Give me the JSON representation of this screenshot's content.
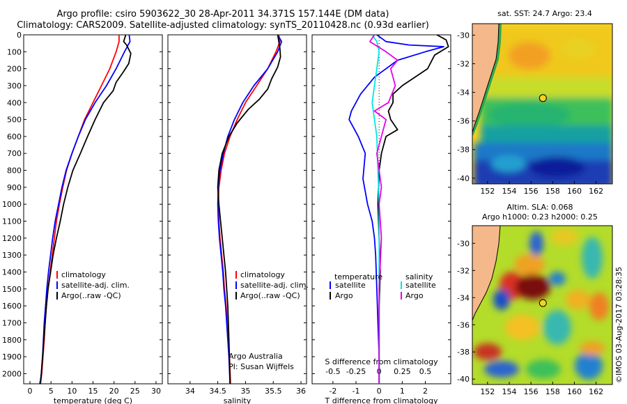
{
  "header": {
    "title_line1": "Argo profile: csiro 5903622_30 28-Apr-2011 34.371S 157.144E (DM data)",
    "title_line2": "Climatology: CARS2009. Satellite-adjusted climatology: synTS_20110428.nc (0.93d earlier)"
  },
  "credit": "©IMOS 03-Aug-2017 03:28:35",
  "colors": {
    "climatology": "#ff0000",
    "satellite": "#0000ff",
    "argo": "#000000",
    "sat_salinity": "#00e6e6",
    "argo_salinity": "#e600e6",
    "land": "#f5b88a",
    "coast_shelf": "#2fa84f"
  },
  "depth_ticks": [
    0,
    100,
    200,
    300,
    400,
    500,
    600,
    700,
    800,
    900,
    1000,
    1100,
    1200,
    1300,
    1400,
    1500,
    1600,
    1700,
    1800,
    1900,
    2000
  ],
  "chart_data": [
    {
      "type": "line",
      "name": "temperature",
      "xlabel": "temperature (deg C)",
      "ylabel": "",
      "xlim": [
        -1.5,
        31.5
      ],
      "ylim": [
        2060,
        0
      ],
      "xticks": [
        0,
        5,
        10,
        15,
        20,
        25,
        30
      ],
      "legend": [
        "climatology",
        "satellite-adj. clim.",
        "Argo(..raw -QC)"
      ],
      "legend_position": "lower-middle",
      "series": [
        {
          "name": "climatology",
          "color_key": "climatology",
          "x": [
            21.2,
            21.2,
            20.5,
            19.0,
            17.0,
            15.0,
            13.0,
            11.5,
            10.0,
            8.7,
            7.8,
            7.0,
            6.3,
            5.8,
            5.3,
            4.8,
            4.3,
            3.9,
            3.6,
            3.4,
            3.1,
            2.8,
            2.6,
            2.4
          ],
          "y": [
            0,
            40,
            100,
            200,
            300,
            400,
            500,
            600,
            700,
            800,
            900,
            1000,
            1100,
            1200,
            1300,
            1400,
            1500,
            1600,
            1700,
            1800,
            1900,
            2000,
            2040,
            2060
          ]
        },
        {
          "name": "satellite-adj. clim.",
          "color_key": "satellite",
          "x": [
            23.6,
            23.8,
            22.5,
            20.5,
            18.2,
            15.5,
            13.2,
            11.5,
            10.0,
            8.6,
            7.6,
            6.8,
            6.0,
            5.4,
            4.9,
            4.4,
            4.0,
            3.7,
            3.4,
            3.2,
            3.0,
            2.7,
            2.5,
            2.3
          ],
          "y": [
            0,
            40,
            100,
            200,
            300,
            400,
            500,
            600,
            700,
            800,
            900,
            1000,
            1100,
            1200,
            1300,
            1400,
            1500,
            1600,
            1700,
            1800,
            1900,
            2000,
            2040,
            2060
          ]
        },
        {
          "name": "Argo(..raw -QC)",
          "color_key": "argo",
          "x": [
            22.8,
            22.3,
            23.0,
            24.0,
            23.5,
            22.2,
            20.5,
            19.8,
            17.5,
            15.5,
            13.7,
            12.0,
            10.2,
            9.0,
            8.0,
            7.2,
            6.3,
            5.5,
            4.9,
            4.3,
            3.9,
            3.6,
            3.3,
            3.0,
            2.7,
            2.5
          ],
          "y": [
            0,
            40,
            60,
            110,
            170,
            220,
            280,
            330,
            400,
            500,
            600,
            700,
            800,
            900,
            1000,
            1100,
            1200,
            1300,
            1400,
            1500,
            1600,
            1700,
            1800,
            1900,
            2000,
            2060
          ]
        }
      ]
    },
    {
      "type": "line",
      "name": "salinity",
      "xlabel": "salinity",
      "ylabel": "",
      "xlim": [
        33.6,
        36.1
      ],
      "ylim": [
        2060,
        0
      ],
      "xticks": [
        34,
        34.5,
        35,
        35.5,
        36
      ],
      "legend": [
        "climatology",
        "satellite-adj. clim.",
        "Argo(..raw -QC)"
      ],
      "legend_position": "lower-right",
      "annotation_line1": "Argo Australia",
      "annotation_line2": "PI: Susan Wijffels",
      "series": [
        {
          "name": "climatology",
          "color_key": "climatology",
          "x": [
            35.6,
            35.62,
            35.55,
            35.4,
            35.2,
            35.0,
            34.85,
            34.72,
            34.62,
            34.56,
            34.52,
            34.51,
            34.52,
            34.54,
            34.57,
            34.6,
            34.62,
            34.65,
            34.67,
            34.69,
            34.71,
            34.73
          ],
          "y": [
            0,
            40,
            100,
            200,
            300,
            400,
            500,
            600,
            700,
            800,
            900,
            1000,
            1100,
            1200,
            1300,
            1400,
            1500,
            1600,
            1700,
            1800,
            1900,
            2060
          ]
        },
        {
          "name": "satellite-adj. clim.",
          "color_key": "satellite",
          "x": [
            35.58,
            35.65,
            35.58,
            35.4,
            35.15,
            34.95,
            34.8,
            34.68,
            34.6,
            34.54,
            34.51,
            34.5,
            34.51,
            34.53,
            34.56,
            34.59,
            34.61,
            34.64,
            34.66,
            34.68,
            34.7,
            34.72
          ],
          "y": [
            0,
            40,
            100,
            200,
            300,
            400,
            500,
            600,
            700,
            800,
            900,
            1000,
            1100,
            1200,
            1300,
            1400,
            1500,
            1600,
            1700,
            1800,
            1900,
            2060
          ]
        },
        {
          "name": "Argo(..raw -QC)",
          "color_key": "argo",
          "x": [
            35.58,
            35.6,
            35.62,
            35.63,
            35.58,
            35.47,
            35.4,
            35.25,
            35.05,
            34.85,
            34.7,
            34.58,
            34.52,
            34.5,
            34.52,
            34.55,
            34.58,
            34.61,
            34.64,
            34.66,
            34.68,
            34.7,
            34.72
          ],
          "y": [
            0,
            40,
            80,
            130,
            190,
            260,
            320,
            380,
            440,
            520,
            600,
            700,
            800,
            900,
            1000,
            1100,
            1200,
            1300,
            1400,
            1500,
            1600,
            1800,
            2060
          ]
        }
      ]
    },
    {
      "type": "line",
      "name": "difference",
      "xlabel": "T difference from climatology",
      "xlabel_top": "S difference from climatology",
      "xlim": [
        -2.9,
        3.1
      ],
      "ylim": [
        2060,
        0
      ],
      "xticks": [
        -2,
        -1,
        0,
        1,
        2
      ],
      "xtick_labels_s": [
        "-0.5",
        "-0.25",
        "0",
        "0.25",
        "0.5"
      ],
      "legend_left_title": "temperature",
      "legend_right_title": "salinity",
      "legend_left": [
        "satellite",
        "Argo"
      ],
      "legend_right": [
        "satellite",
        "Argo"
      ],
      "legend_position": "lower",
      "series": [
        {
          "name": "temperature satellite",
          "color_key": "satellite",
          "x": [
            -0.1,
            0.3,
            1.3,
            2.8,
            2.0,
            0.8,
            -0.2,
            -0.8,
            -1.2,
            -1.3,
            -0.9,
            -0.6,
            -0.7,
            -0.5,
            -0.3,
            -0.2,
            -0.15,
            -0.1,
            -0.05,
            0.0,
            0.0
          ],
          "y": [
            0,
            40,
            60,
            70,
            100,
            150,
            250,
            350,
            450,
            500,
            600,
            700,
            850,
            1000,
            1100,
            1200,
            1300,
            1500,
            1700,
            1900,
            2060
          ]
        },
        {
          "name": "temperature Argo",
          "color_key": "argo",
          "x": [
            2.5,
            2.9,
            3.0,
            2.4,
            2.1,
            1.0,
            0.6,
            0.6,
            0.4,
            0.5,
            0.8,
            0.3,
            0.1,
            0.0,
            -0.05,
            0.0,
            0.05,
            0.0,
            0.0,
            0.0
          ],
          "y": [
            0,
            30,
            70,
            120,
            200,
            300,
            350,
            400,
            450,
            500,
            560,
            600,
            700,
            800,
            1000,
            1200,
            1400,
            1600,
            1800,
            2060
          ]
        },
        {
          "name": "salinity satellite",
          "color_key": "sat_salinity",
          "x": [
            -0.3,
            -0.1,
            0.0,
            -0.1,
            -0.2,
            -0.3,
            -0.2,
            -0.1,
            -0.05,
            0.0,
            0.0,
            0.0,
            0.0
          ],
          "y": [
            0,
            40,
            100,
            200,
            300,
            400,
            500,
            600,
            800,
            1000,
            1400,
            1800,
            2060
          ]
        },
        {
          "name": "salinity Argo",
          "color_key": "argo_salinity",
          "x": [
            -0.2,
            -0.4,
            0.3,
            0.8,
            0.5,
            0.7,
            0.4,
            -0.2,
            0.3,
            -0.1,
            0.1,
            0.0,
            0.1,
            0.0,
            0.0,
            0.0
          ],
          "y": [
            0,
            40,
            100,
            150,
            200,
            300,
            400,
            450,
            500,
            700,
            900,
            1000,
            1200,
            1500,
            1800,
            2060
          ]
        }
      ]
    }
  ],
  "maps": [
    {
      "title_line1": "sat. SST: 24.7 Argo: 23.4",
      "title_line2": "",
      "xticks": [
        "152",
        "154",
        "156",
        "158",
        "160",
        "162"
      ],
      "yticks": [
        "-30",
        "-32",
        "-34",
        "-36",
        "-38",
        "-40"
      ],
      "argo_lon": 157.1,
      "argo_lat": -34.4
    },
    {
      "title_line1": "Altim. SLA: 0.068",
      "title_line2": "Argo h1000: 0.23 h2000: 0.25",
      "xticks": [
        "152",
        "154",
        "156",
        "158",
        "160",
        "162"
      ],
      "yticks": [
        "-30",
        "-32",
        "-34",
        "-36",
        "-38",
        "-40"
      ],
      "argo_lon": 157.1,
      "argo_lat": -34.4
    }
  ]
}
